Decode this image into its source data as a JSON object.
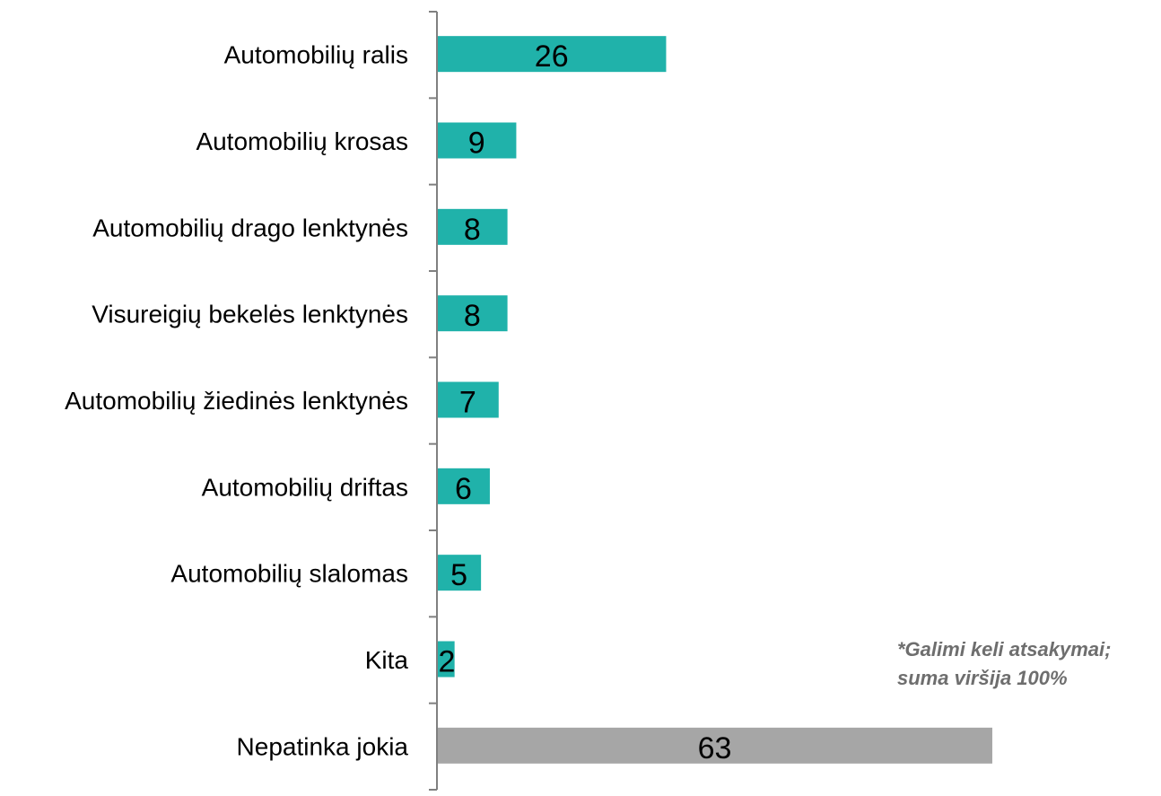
{
  "chart_data": {
    "type": "bar",
    "orientation": "horizontal",
    "categories": [
      "Automobilių ralis",
      "Automobilių krosas",
      "Automobilių drago lenktynės",
      "Visureigių bekelės lenktynės",
      "Automobilių žiedinės lenktynės",
      "Automobilių driftas",
      "Automobilių slalomas",
      "Kita",
      "Nepatinka jokia"
    ],
    "values": [
      26,
      9,
      8,
      8,
      7,
      6,
      5,
      2,
      63
    ],
    "bar_colors": [
      "#20b2aa",
      "#20b2aa",
      "#20b2aa",
      "#20b2aa",
      "#20b2aa",
      "#20b2aa",
      "#20b2aa",
      "#20b2aa",
      "#a6a6a6"
    ],
    "data_labels": [
      "26",
      "9",
      "8",
      "8",
      "7",
      "6",
      "5",
      "2",
      "63"
    ],
    "xlim": [
      0,
      80
    ],
    "axis_color": "#808080",
    "grid": false,
    "legend": "none"
  },
  "note": {
    "line1": "*Galimi keli atsakymai;",
    "line2": "suma viršija 100%"
  }
}
